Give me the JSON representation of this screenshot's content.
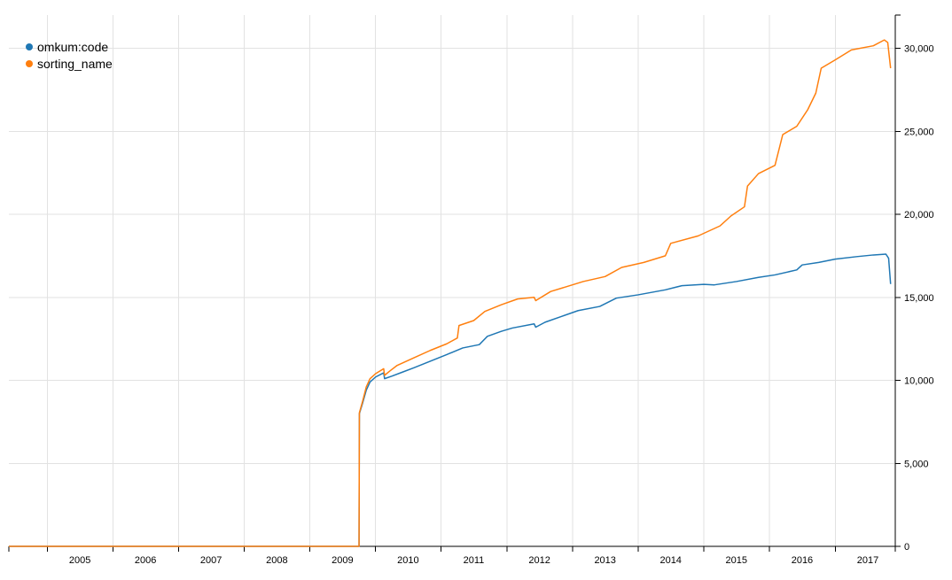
{
  "chart_data": {
    "type": "line",
    "title": "",
    "xlabel": "",
    "ylabel": "",
    "x_ticks": [
      "2005",
      "2006",
      "2007",
      "2008",
      "2009",
      "2010",
      "2011",
      "2012",
      "2013",
      "2014",
      "2015",
      "2016",
      "2017"
    ],
    "y_ticks": [
      "0",
      "5,000",
      "10,000",
      "15,000",
      "20,000",
      "25,000",
      "30,000"
    ],
    "xlim": [
      "2004-06-01",
      "2017-12-01"
    ],
    "ylim": [
      0,
      32000
    ],
    "grid": true,
    "y_axis_side": "right",
    "legend_position": "top-left",
    "series": [
      {
        "name": "omkum:code",
        "color": "#1f77b4",
        "points": [
          [
            "2004-06-01",
            0
          ],
          [
            "2009-10-01",
            0
          ],
          [
            "2009-10-03",
            8000
          ],
          [
            "2009-10-20",
            8600
          ],
          [
            "2009-11-10",
            9400
          ],
          [
            "2009-12-01",
            9900
          ],
          [
            "2010-01-01",
            10200
          ],
          [
            "2010-02-15",
            10450
          ],
          [
            "2010-02-20",
            10100
          ],
          [
            "2010-04-01",
            10250
          ],
          [
            "2010-06-01",
            10500
          ],
          [
            "2010-08-01",
            10750
          ],
          [
            "2010-11-01",
            11150
          ],
          [
            "2011-02-01",
            11550
          ],
          [
            "2011-05-01",
            11950
          ],
          [
            "2011-08-01",
            12150
          ],
          [
            "2011-09-15",
            12650
          ],
          [
            "2011-12-01",
            12950
          ],
          [
            "2012-02-01",
            13150
          ],
          [
            "2012-06-01",
            13400
          ],
          [
            "2012-06-10",
            13200
          ],
          [
            "2012-08-01",
            13500
          ],
          [
            "2012-11-01",
            13850
          ],
          [
            "2013-02-01",
            14200
          ],
          [
            "2013-06-01",
            14450
          ],
          [
            "2013-09-01",
            14950
          ],
          [
            "2014-01-01",
            15150
          ],
          [
            "2014-06-01",
            15450
          ],
          [
            "2014-09-01",
            15700
          ],
          [
            "2015-01-01",
            15780
          ],
          [
            "2015-03-01",
            15750
          ],
          [
            "2015-07-01",
            15950
          ],
          [
            "2015-11-01",
            16200
          ],
          [
            "2016-02-01",
            16350
          ],
          [
            "2016-06-01",
            16650
          ],
          [
            "2016-07-01",
            16950
          ],
          [
            "2016-10-01",
            17100
          ],
          [
            "2017-01-01",
            17300
          ],
          [
            "2017-05-01",
            17450
          ],
          [
            "2017-08-01",
            17550
          ],
          [
            "2017-10-10",
            17600
          ],
          [
            "2017-10-25",
            17350
          ],
          [
            "2017-11-05",
            15800
          ]
        ]
      },
      {
        "name": "sorting_name",
        "color": "#ff7f0e",
        "points": [
          [
            "2004-06-01",
            0
          ],
          [
            "2009-10-01",
            0
          ],
          [
            "2009-10-03",
            8050
          ],
          [
            "2009-10-20",
            8700
          ],
          [
            "2009-11-10",
            9600
          ],
          [
            "2009-12-01",
            10100
          ],
          [
            "2010-01-01",
            10400
          ],
          [
            "2010-02-15",
            10700
          ],
          [
            "2010-02-20",
            10300
          ],
          [
            "2010-03-20",
            10550
          ],
          [
            "2010-05-01",
            10900
          ],
          [
            "2010-08-01",
            11350
          ],
          [
            "2010-11-01",
            11800
          ],
          [
            "2011-02-01",
            12200
          ],
          [
            "2011-04-01",
            12550
          ],
          [
            "2011-04-10",
            13300
          ],
          [
            "2011-07-01",
            13600
          ],
          [
            "2011-09-01",
            14150
          ],
          [
            "2011-12-01",
            14550
          ],
          [
            "2012-03-01",
            14900
          ],
          [
            "2012-06-01",
            15000
          ],
          [
            "2012-06-10",
            14800
          ],
          [
            "2012-09-01",
            15350
          ],
          [
            "2012-12-01",
            15650
          ],
          [
            "2013-03-01",
            15950
          ],
          [
            "2013-07-01",
            16250
          ],
          [
            "2013-10-01",
            16800
          ],
          [
            "2014-02-01",
            17100
          ],
          [
            "2014-06-01",
            17500
          ],
          [
            "2014-07-01",
            18250
          ],
          [
            "2014-12-01",
            18700
          ],
          [
            "2015-04-01",
            19300
          ],
          [
            "2015-06-01",
            19900
          ],
          [
            "2015-08-15",
            20450
          ],
          [
            "2015-09-01",
            21700
          ],
          [
            "2015-11-01",
            22450
          ],
          [
            "2016-02-01",
            22950
          ],
          [
            "2016-03-15",
            24800
          ],
          [
            "2016-06-01",
            25300
          ],
          [
            "2016-08-01",
            26300
          ],
          [
            "2016-09-15",
            27300
          ],
          [
            "2016-10-15",
            28800
          ],
          [
            "2017-01-01",
            29300
          ],
          [
            "2017-04-01",
            29900
          ],
          [
            "2017-08-01",
            30150
          ],
          [
            "2017-10-01",
            30500
          ],
          [
            "2017-10-20",
            30350
          ],
          [
            "2017-11-05",
            28800
          ]
        ]
      }
    ]
  }
}
